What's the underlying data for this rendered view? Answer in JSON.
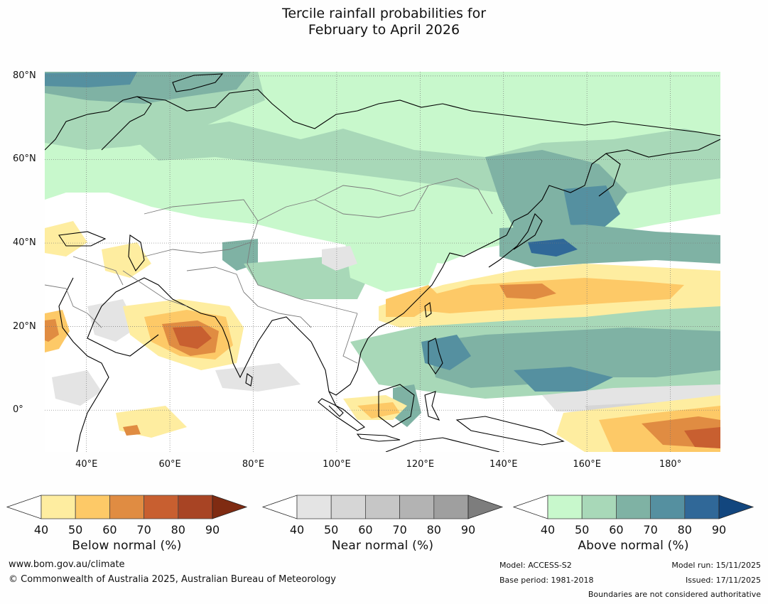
{
  "title": {
    "line1": "Tercile rainfall probabilities for",
    "line2": "February to April 2026"
  },
  "map": {
    "region": "Asia and western Pacific",
    "lat_labels": [
      "80°N",
      "60°N",
      "40°N",
      "20°N",
      "0°"
    ],
    "lon_labels": [
      "40°E",
      "60°E",
      "80°E",
      "100°E",
      "120°E",
      "140°E",
      "160°E",
      "180°"
    ],
    "lat_values": [
      80,
      60,
      40,
      20,
      0
    ],
    "lon_values": [
      40,
      60,
      80,
      100,
      120,
      140,
      160,
      180
    ],
    "extent": {
      "lon_min": 30,
      "lon_max": 192,
      "lat_min": -10,
      "lat_max": 81
    }
  },
  "legends": {
    "below": {
      "title": "Below normal (%)",
      "ticks": [
        "40",
        "50",
        "60",
        "70",
        "80",
        "90"
      ],
      "colors": [
        "#ffffff",
        "#feeda0",
        "#fdc967",
        "#e08c42",
        "#c85f30",
        "#a84424",
        "#7f2b12"
      ]
    },
    "near": {
      "title": "Near normal (%)",
      "ticks": [
        "40",
        "50",
        "60",
        "70",
        "80",
        "90"
      ],
      "colors": [
        "#ffffff",
        "#e4e4e4",
        "#d6d6d6",
        "#c6c6c6",
        "#b3b3b3",
        "#9f9f9f",
        "#7d7d7d"
      ]
    },
    "above": {
      "title": "Above normal (%)",
      "ticks": [
        "40",
        "50",
        "60",
        "70",
        "80",
        "90"
      ],
      "colors": [
        "#ffffff",
        "#c8f8cc",
        "#a8d8b8",
        "#7fb2a4",
        "#5590a0",
        "#306898",
        "#12467e"
      ]
    }
  },
  "footer": {
    "website": "www.bom.gov.au/climate",
    "copyright": "© Commonwealth of Australia 2025, Australian Bureau of Meteorology",
    "model": "Model: ACCESS-S2",
    "base_period": "Base period: 1981-2018",
    "model_run": "Model run: 15/11/2025",
    "issued": "Issued: 17/11/2025",
    "disclaimer": "Boundaries are not considered authoritative"
  }
}
